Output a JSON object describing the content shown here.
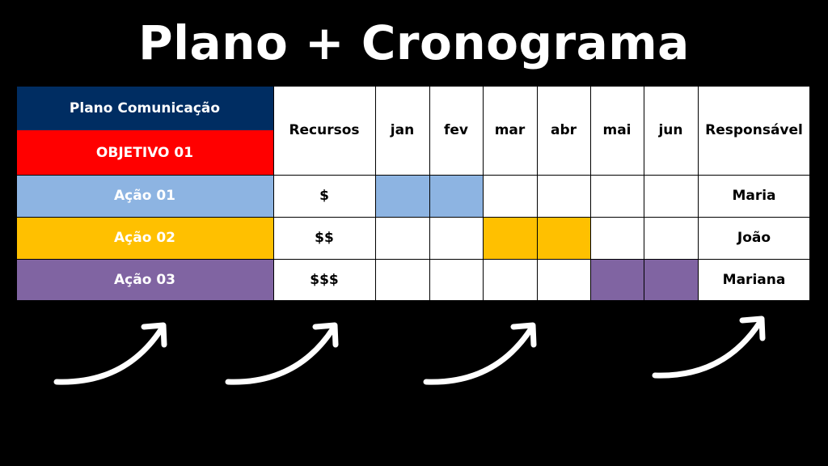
{
  "title": "Plano + Cronograma",
  "table": {
    "plan_label": "Plano Comunicação",
    "objective_label": "OBJETIVO 01",
    "columns": [
      "Recursos",
      "jan",
      "fev",
      "mar",
      "abr",
      "mai",
      "jun",
      "Responsável"
    ],
    "rows": [
      {
        "action": "Ação 01",
        "resources": "$",
        "months_active": [
          "jan",
          "fev"
        ],
        "owner": "Maria",
        "color": "#8db4e2"
      },
      {
        "action": "Ação 02",
        "resources": "$$",
        "months_active": [
          "mar",
          "abr"
        ],
        "owner": "João",
        "color": "#ffc000"
      },
      {
        "action": "Ação 03",
        "resources": "$$$",
        "months_active": [
          "mai",
          "jun"
        ],
        "owner": "Mariana",
        "color": "#8064a2"
      }
    ]
  },
  "colors": {
    "plan_header": "#002d62",
    "objective": "#ff0000",
    "background": "#000000"
  },
  "decorations": [
    "curved-arrow-icon",
    "curved-arrow-icon",
    "curved-arrow-icon",
    "curved-arrow-icon"
  ]
}
